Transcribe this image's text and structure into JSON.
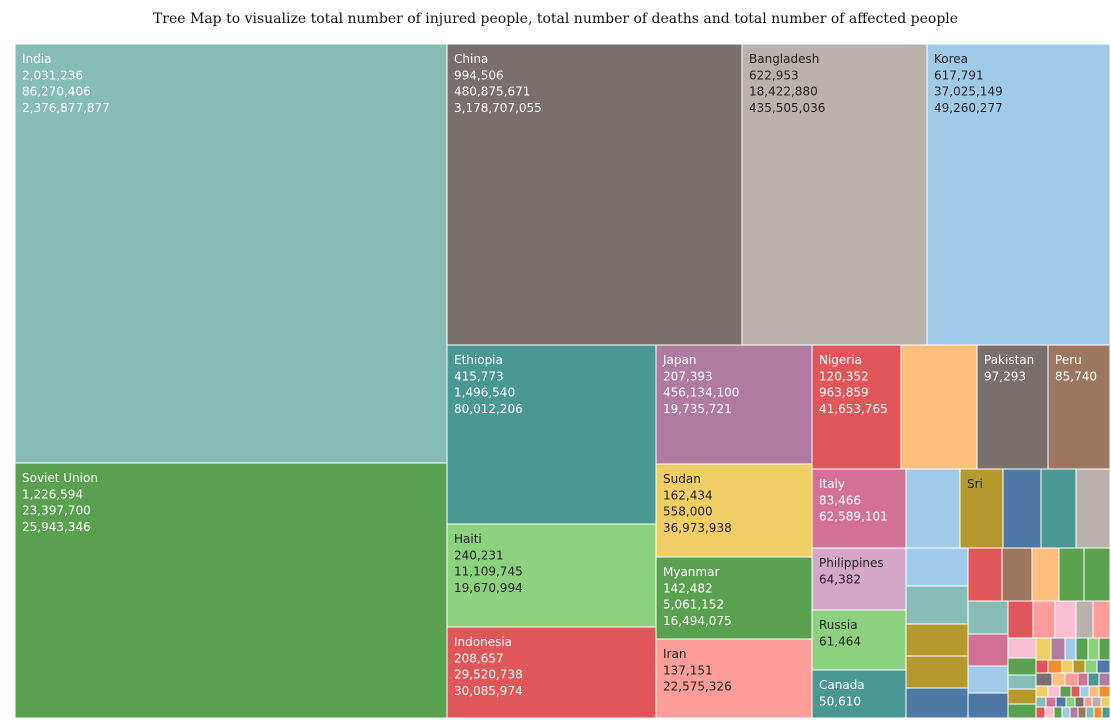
{
  "chart_data": {
    "type": "treemap",
    "title": "Tree Map to visualize total number of injured people, total number of deaths and total number of affected people",
    "measures": [
      "Total Injured",
      "Total Deaths",
      "Total Affected"
    ],
    "tiles": [
      {
        "label": "India",
        "values": [
          "2,031,236",
          "86,270,406",
          "2,376,877,877"
        ],
        "color": "#86bcb6",
        "text_color": "#ffffff"
      },
      {
        "label": "Soviet Union",
        "values": [
          "1,226,594",
          "23,397,700",
          "25,943,346"
        ],
        "color": "#59a14f",
        "text_color": "#ffffff"
      },
      {
        "label": "China",
        "values": [
          "994,506",
          "480,875,671",
          "3,178,707,055"
        ],
        "color": "#79706e",
        "text_color": "#ffffff"
      },
      {
        "label": "Bangladesh",
        "values": [
          "622,953",
          "18,422,880",
          "435,505,036"
        ],
        "color": "#bab0ac",
        "text_color": "#222222"
      },
      {
        "label": "Korea",
        "values": [
          "617,791",
          "37,025,149",
          "49,260,277"
        ],
        "color": "#a0cbe8",
        "text_color": "#222222"
      },
      {
        "label": "Ethiopia",
        "values": [
          "415,773",
          "1,496,540",
          "80,012,206"
        ],
        "color": "#499894",
        "text_color": "#ffffff"
      },
      {
        "label": "Haiti",
        "values": [
          "240,231",
          "11,109,745",
          "19,670,994"
        ],
        "color": "#8cd17d",
        "text_color": "#222222"
      },
      {
        "label": "Indonesia",
        "values": [
          "208,657",
          "29,520,738",
          "30,085,974"
        ],
        "color": "#e15759",
        "text_color": "#ffffff"
      },
      {
        "label": "Japan",
        "values": [
          "207,393",
          "456,134,100",
          "19,735,721"
        ],
        "color": "#b07aa1",
        "text_color": "#ffffff"
      },
      {
        "label": "Sudan",
        "values": [
          "162,434",
          "558,000",
          "36,973,938"
        ],
        "color": "#f1ce63",
        "text_color": "#222222"
      },
      {
        "label": "Myanmar",
        "values": [
          "142,482",
          "5,061,152",
          "16,494,075"
        ],
        "color": "#59a14f",
        "text_color": "#ffffff"
      },
      {
        "label": "Iran",
        "values": [
          "137,151",
          "22,575,326"
        ],
        "color": "#ff9d9a",
        "text_color": "#222222"
      },
      {
        "label": "Nigeria",
        "values": [
          "120,352",
          "963,859",
          "41,653,765"
        ],
        "color": "#e15759",
        "text_color": "#ffffff"
      },
      {
        "label": "",
        "values": [],
        "color": "#ffbe7d",
        "text_color": "#222222"
      },
      {
        "label": "Pakistan",
        "values": [
          "97,293"
        ],
        "color": "#79706e",
        "text_color": "#ffffff"
      },
      {
        "label": "Peru",
        "values": [
          "85,740"
        ],
        "color": "#9d7660",
        "text_color": "#ffffff"
      },
      {
        "label": "Italy",
        "values": [
          "83,466",
          "62,589,101"
        ],
        "color": "#d37295",
        "text_color": "#ffffff"
      },
      {
        "label": "Philippines",
        "values": [
          "64,382"
        ],
        "color": "#d4a6c8",
        "text_color": "#222222"
      },
      {
        "label": "Russia",
        "values": [
          "61,464"
        ],
        "color": "#8cd17d",
        "text_color": "#222222"
      },
      {
        "label": "Canada",
        "values": [
          "50,610"
        ],
        "color": "#499894",
        "text_color": "#ffffff"
      },
      {
        "label": "Sri",
        "values": [],
        "color": "#b6992d",
        "text_color": "#222222"
      }
    ],
    "small_tile_colors": [
      "#a0cbe8",
      "#4e79a7",
      "#499894",
      "#bab0ac",
      "#e15759",
      "#9d7660",
      "#ffbe7d",
      "#59a14f",
      "#86bcb6",
      "#b6992d",
      "#d37295",
      "#ff9d9a",
      "#fabfd2",
      "#8cd17d",
      "#f1ce63",
      "#b07aa1",
      "#79706e",
      "#f28e2b"
    ]
  }
}
